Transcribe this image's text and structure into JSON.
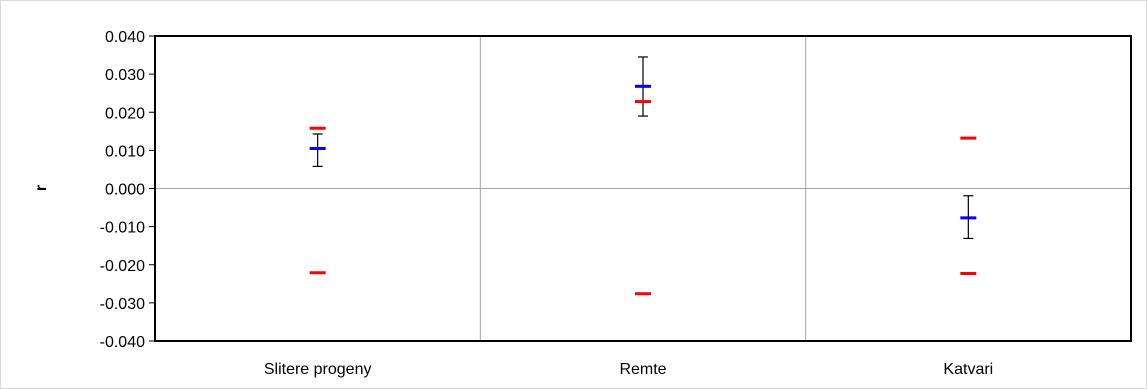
{
  "chart_data": {
    "type": "scatter",
    "title": "",
    "xlabel": "",
    "ylabel": "r",
    "ylim": [
      -0.04,
      0.04
    ],
    "ytick_labels": [
      "0.040",
      "0.030",
      "0.020",
      "0.010",
      "0.000",
      "-0.010",
      "-0.020",
      "-0.030",
      "-0.040"
    ],
    "categories": [
      "Slitere progeny",
      "Remte",
      "Katvari"
    ],
    "grid": "vertical separators between categories and a horizontal line at 0",
    "legend": "none",
    "series": [
      {
        "marker": "dash",
        "color": "#0000ff",
        "values": [
          0.0105,
          0.0268,
          -0.0077
        ],
        "error_low": [
          0.0058,
          0.019,
          -0.0131
        ],
        "error_high": [
          0.0143,
          0.0345,
          -0.0019
        ]
      },
      {
        "marker": "dash",
        "color": "#ff0000",
        "values": [
          0.0158,
          0.0228,
          0.0132
        ]
      },
      {
        "marker": "dash",
        "color": "#ff0000",
        "values": [
          -0.0221,
          -0.0276,
          -0.0223
        ]
      }
    ],
    "colors": {
      "axis": "#000000",
      "grid": "#a6a6a6",
      "errorbar": "#000000"
    }
  }
}
